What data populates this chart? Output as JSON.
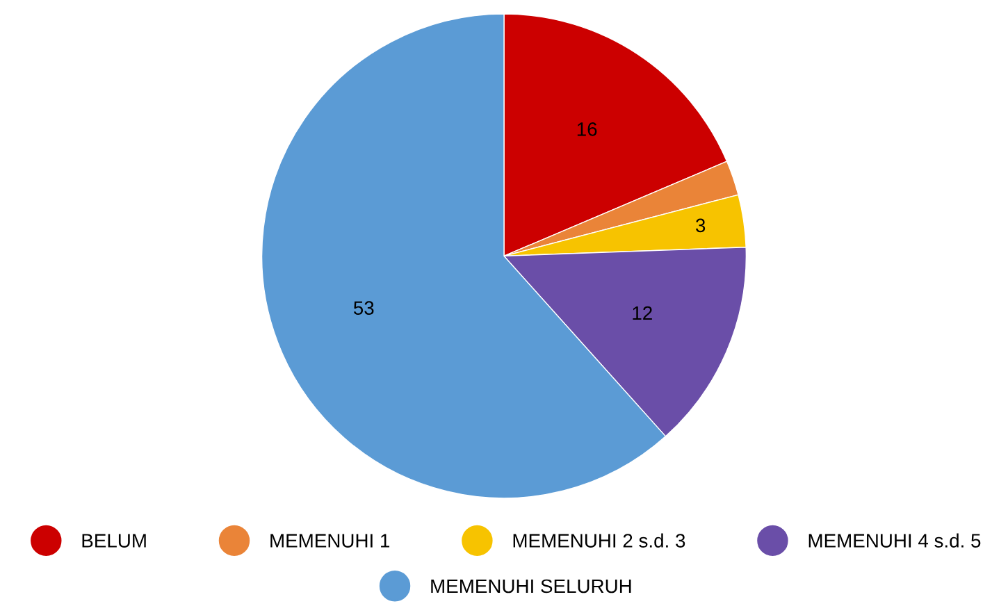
{
  "chart_data": {
    "type": "pie",
    "categories": [
      "BELUM",
      "MEMENUHI 1",
      "MEMENUHI 2 s.d. 3",
      "MEMENUHI 4 s.d. 5",
      "MEMENUHI SELURUH"
    ],
    "values": [
      16,
      2,
      3,
      12,
      53
    ],
    "value_labels": [
      "16",
      null,
      "3",
      "12",
      "53"
    ],
    "colors": [
      "#cc0000",
      "#ea8438",
      "#f7c300",
      "#6a4ea8",
      "#5b9bd5"
    ],
    "legend": "bottom"
  }
}
